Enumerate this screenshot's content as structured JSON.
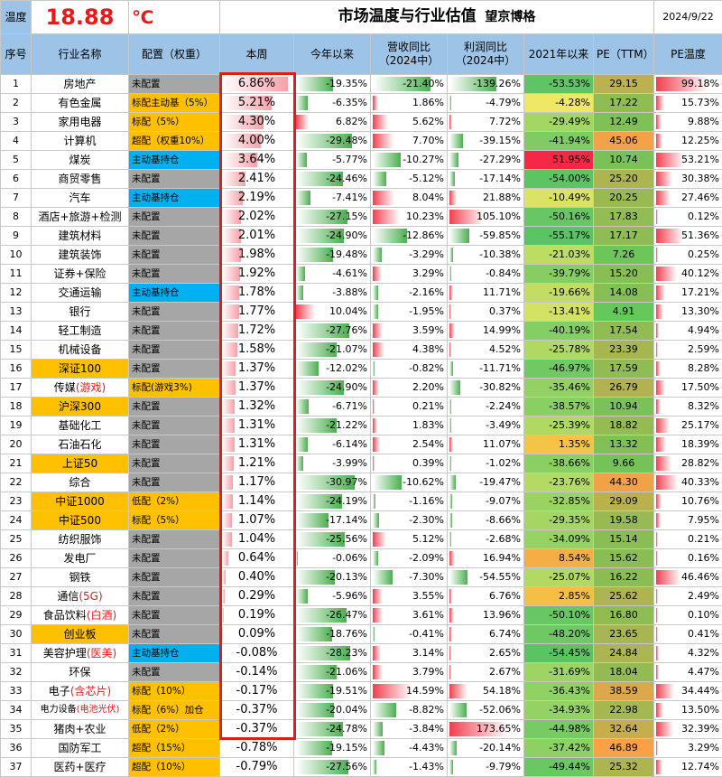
{
  "header": {
    "temp_label": "温度",
    "temp_value": "18.88",
    "temp_unit": "℃",
    "title": "市场温度与行业估值",
    "author": "望京博格",
    "date": "2024/9/22"
  },
  "columns": [
    "序号",
    "行业名称",
    "配置（权重）",
    "本周",
    "今年以来",
    "营收同比（2024中）",
    "利润同比（2024中）",
    "2021年以来",
    "PE（TTM）",
    "PE温度"
  ],
  "colors": {
    "header_bg": "#9dc3e6",
    "cfg_none": "#a6a6a6",
    "cfg_over": "#ffc000",
    "cfg_core": "#00b0f0",
    "name_index": "#ffc000",
    "highlight": "#e31b1b"
  },
  "rows": [
    {
      "no": "1",
      "name": "房地产",
      "cfg": "未配置",
      "ct": "none",
      "wk": "6.86%",
      "ytd": "-19.35%",
      "rev": "-21.40%",
      "prof": "-139.26%",
      "s21": "-53.53%",
      "pe": "29.15",
      "pet": "99.18%"
    },
    {
      "no": "2",
      "name": "有色金属",
      "cfg": "标配主动基（5%）",
      "ct": "over",
      "wk": "5.21%",
      "ytd": "-6.35%",
      "rev": "1.86%",
      "prof": "-4.79%",
      "s21": "-4.28%",
      "pe": "17.22",
      "pet": "15.73%"
    },
    {
      "no": "3",
      "name": "家用电器",
      "cfg": "标配（5%）",
      "ct": "over",
      "wk": "4.30%",
      "ytd": "6.82%",
      "rev": "5.62%",
      "prof": "7.72%",
      "s21": "-29.49%",
      "pe": "12.49",
      "pet": "9.88%"
    },
    {
      "no": "4",
      "name": "计算机",
      "cfg": "超配（权重10%）",
      "ct": "over",
      "wk": "4.00%",
      "ytd": "-29.48%",
      "rev": "7.70%",
      "prof": "-39.15%",
      "s21": "-41.94%",
      "pe": "45.06",
      "pet": "12.25%"
    },
    {
      "no": "5",
      "name": "煤炭",
      "cfg": "主动基持仓",
      "ct": "core",
      "wk": "3.64%",
      "ytd": "-5.77%",
      "rev": "-10.27%",
      "prof": "-27.29%",
      "s21": "51.95%",
      "pe": "10.74",
      "pet": "53.21%"
    },
    {
      "no": "6",
      "name": "商贸零售",
      "cfg": "未配置",
      "ct": "none",
      "wk": "2.41%",
      "ytd": "-24.46%",
      "rev": "-5.12%",
      "prof": "-17.14%",
      "s21": "-54.00%",
      "pe": "25.20",
      "pet": "30.38%"
    },
    {
      "no": "7",
      "name": "汽车",
      "cfg": "主动基持仓",
      "ct": "core",
      "wk": "2.19%",
      "ytd": "-7.41%",
      "rev": "8.04%",
      "prof": "21.88%",
      "s21": "-10.49%",
      "pe": "20.25",
      "pet": "27.46%"
    },
    {
      "no": "8",
      "name": "酒店+旅游+检测",
      "cfg": "未配置",
      "ct": "none",
      "wk": "2.02%",
      "ytd": "-27.15%",
      "rev": "10.23%",
      "prof": "105.10%",
      "s21": "-50.16%",
      "pe": "17.83",
      "pet": "0.12%"
    },
    {
      "no": "9",
      "name": "建筑材料",
      "cfg": "未配置",
      "ct": "none",
      "wk": "2.01%",
      "ytd": "-24.90%",
      "rev": "-12.86%",
      "prof": "-59.85%",
      "s21": "-55.17%",
      "pe": "17.17",
      "pet": "51.36%"
    },
    {
      "no": "10",
      "name": "建筑装饰",
      "cfg": "未配置",
      "ct": "none",
      "wk": "1.98%",
      "ytd": "-19.48%",
      "rev": "-3.29%",
      "prof": "-10.38%",
      "s21": "-21.03%",
      "pe": "7.26",
      "pet": "0.25%"
    },
    {
      "no": "11",
      "name": "证券+保险",
      "cfg": "未配置",
      "ct": "none",
      "wk": "1.92%",
      "ytd": "-4.61%",
      "rev": "3.29%",
      "prof": "-0.84%",
      "s21": "-39.79%",
      "pe": "15.20",
      "pet": "40.12%"
    },
    {
      "no": "12",
      "name": "交通运输",
      "cfg": "主动基持仓",
      "ct": "core",
      "wk": "1.78%",
      "ytd": "-3.88%",
      "rev": "-2.16%",
      "prof": "11.71%",
      "s21": "-19.66%",
      "pe": "14.08",
      "pet": "17.21%"
    },
    {
      "no": "13",
      "name": "银行",
      "cfg": "未配置",
      "ct": "none",
      "wk": "1.77%",
      "ytd": "10.04%",
      "rev": "-1.95%",
      "prof": "0.37%",
      "s21": "-13.41%",
      "pe": "4.91",
      "pet": "13.30%"
    },
    {
      "no": "14",
      "name": "轻工制造",
      "cfg": "未配置",
      "ct": "none",
      "wk": "1.72%",
      "ytd": "-27.76%",
      "rev": "3.59%",
      "prof": "14.99%",
      "s21": "-40.19%",
      "pe": "17.54",
      "pet": "4.94%"
    },
    {
      "no": "15",
      "name": "机械设备",
      "cfg": "未配置",
      "ct": "none",
      "wk": "1.58%",
      "ytd": "-21.07%",
      "rev": "4.38%",
      "prof": "4.52%",
      "s21": "-25.78%",
      "pe": "23.39",
      "pet": "2.59%"
    },
    {
      "no": "16",
      "name": "深证100",
      "cfg": "未配置",
      "ct": "none",
      "idx": true,
      "wk": "1.37%",
      "ytd": "-12.02%",
      "rev": "-0.82%",
      "prof": "-11.71%",
      "s21": "-46.97%",
      "pe": "17.59",
      "pet": "8.28%"
    },
    {
      "no": "17",
      "name": "传媒",
      "name_red": "(游戏)",
      "cfg": "标配(游戏3%)",
      "ct": "over",
      "wk": "1.37%",
      "ytd": "-24.90%",
      "rev": "2.20%",
      "prof": "-30.82%",
      "s21": "-35.46%",
      "pe": "26.79",
      "pet": "17.50%"
    },
    {
      "no": "18",
      "name": "沪深300",
      "cfg": "未配置",
      "ct": "none",
      "idx": true,
      "wk": "1.32%",
      "ytd": "-6.71%",
      "rev": "0.21%",
      "prof": "-2.24%",
      "s21": "-38.57%",
      "pe": "10.94",
      "pet": "8.32%"
    },
    {
      "no": "19",
      "name": "基础化工",
      "cfg": "未配置",
      "ct": "none",
      "wk": "1.31%",
      "ytd": "-21.22%",
      "rev": "1.83%",
      "prof": "-3.49%",
      "s21": "-25.39%",
      "pe": "18.82",
      "pet": "25.17%"
    },
    {
      "no": "20",
      "name": "石油石化",
      "cfg": "未配置",
      "ct": "none",
      "wk": "1.31%",
      "ytd": "-6.14%",
      "rev": "2.54%",
      "prof": "11.07%",
      "s21": "1.35%",
      "pe": "13.32",
      "pet": "18.39%"
    },
    {
      "no": "21",
      "name": "上证50",
      "cfg": "未配置",
      "ct": "none",
      "idx": true,
      "wk": "1.21%",
      "ytd": "-3.99%",
      "rev": "0.39%",
      "prof": "-1.02%",
      "s21": "-38.66%",
      "pe": "9.66",
      "pet": "28.82%"
    },
    {
      "no": "22",
      "name": "综合",
      "cfg": "未配置",
      "ct": "none",
      "wk": "1.17%",
      "ytd": "-30.97%",
      "rev": "-10.62%",
      "prof": "-19.47%",
      "s21": "-23.76%",
      "pe": "44.30",
      "pet": "40.33%"
    },
    {
      "no": "23",
      "name": "中证1000",
      "cfg": "低配（2%）",
      "ct": "over",
      "idx": true,
      "wk": "1.14%",
      "ytd": "-24.19%",
      "rev": "-1.16%",
      "prof": "-9.07%",
      "s21": "-32.85%",
      "pe": "29.09",
      "pet": "10.76%"
    },
    {
      "no": "24",
      "name": "中证500",
      "cfg": "标配（5%）",
      "ct": "over",
      "idx": true,
      "wk": "1.07%",
      "ytd": "-17.14%",
      "rev": "-2.30%",
      "prof": "-8.66%",
      "s21": "-29.35%",
      "pe": "19.58",
      "pet": "7.95%"
    },
    {
      "no": "25",
      "name": "纺织服饰",
      "cfg": "未配置",
      "ct": "none",
      "wk": "1.04%",
      "ytd": "-25.56%",
      "rev": "5.12%",
      "prof": "-2.68%",
      "s21": "-34.09%",
      "pe": "15.14",
      "pet": "0.21%"
    },
    {
      "no": "26",
      "name": "发电厂",
      "cfg": "未配置",
      "ct": "none",
      "wk": "0.64%",
      "ytd": "-0.06%",
      "rev": "-2.09%",
      "prof": "16.94%",
      "s21": "8.54%",
      "pe": "15.62",
      "pet": "0.16%"
    },
    {
      "no": "27",
      "name": "钢铁",
      "cfg": "未配置",
      "ct": "none",
      "wk": "0.40%",
      "ytd": "-20.13%",
      "rev": "-7.30%",
      "prof": "-54.55%",
      "s21": "-25.07%",
      "pe": "16.22",
      "pet": "46.46%"
    },
    {
      "no": "28",
      "name": "通信",
      "name_red": "(5G)",
      "cfg": "未配置",
      "ct": "none",
      "wk": "0.29%",
      "ytd": "-5.96%",
      "rev": "3.55%",
      "prof": "6.76%",
      "s21": "2.85%",
      "pe": "25.62",
      "pet": "2.49%"
    },
    {
      "no": "29",
      "name": "食品饮料",
      "name_red": "(白酒)",
      "cfg": "未配置",
      "ct": "none",
      "wk": "0.19%",
      "ytd": "-26.47%",
      "rev": "3.61%",
      "prof": "13.96%",
      "s21": "-50.10%",
      "pe": "16.80",
      "pet": "0.10%"
    },
    {
      "no": "30",
      "name": "创业板",
      "cfg": "未配置",
      "ct": "none",
      "idx": true,
      "wk": "0.09%",
      "ytd": "-18.76%",
      "rev": "-0.41%",
      "prof": "6.74%",
      "s21": "-48.20%",
      "pe": "23.65",
      "pet": "0.41%"
    },
    {
      "no": "31",
      "name": "美容护理",
      "name_red": "(医美)",
      "cfg": "主动基持仓",
      "ct": "core",
      "wk": "-0.08%",
      "ytd": "-28.23%",
      "rev": "3.14%",
      "prof": "2.65%",
      "s21": "-54.45%",
      "pe": "24.84",
      "pet": "4.32%"
    },
    {
      "no": "32",
      "name": "环保",
      "cfg": "未配置",
      "ct": "none",
      "wk": "-0.14%",
      "ytd": "-21.06%",
      "rev": "3.79%",
      "prof": "2.67%",
      "s21": "-31.69%",
      "pe": "18.04",
      "pet": "4.47%"
    },
    {
      "no": "33",
      "name": "电子",
      "name_red": "(含芯片)",
      "cfg": "标配（10%）",
      "ct": "over",
      "wk": "-0.17%",
      "ytd": "-19.51%",
      "rev": "14.59%",
      "prof": "54.18%",
      "s21": "-36.43%",
      "pe": "38.59",
      "pet": "34.44%"
    },
    {
      "no": "34",
      "name": "电力设备",
      "name_red": "(电池光伏)",
      "cfg": "标配（6%）加仓",
      "ct": "over",
      "small": true,
      "wk": "-0.37%",
      "ytd": "-20.04%",
      "rev": "-8.82%",
      "prof": "-52.06%",
      "s21": "-34.93%",
      "pe": "22.98",
      "pet": "13.50%"
    },
    {
      "no": "35",
      "name": "猪肉+农业",
      "cfg": "低配（2%）",
      "ct": "over",
      "wk": "-0.37%",
      "ytd": "-24.78%",
      "rev": "-3.84%",
      "prof": "173.65%",
      "s21": "-44.98%",
      "pe": "32.64",
      "pet": "32.39%"
    },
    {
      "no": "36",
      "name": "国防军工",
      "cfg": "超配（15%）",
      "ct": "over",
      "wk": "-0.78%",
      "ytd": "-19.15%",
      "rev": "-4.43%",
      "prof": "-20.14%",
      "s21": "-37.42%",
      "pe": "46.89",
      "pet": "3.29%"
    },
    {
      "no": "37",
      "name": "医药+医疗",
      "cfg": "超配（10%）",
      "ct": "over",
      "wk": "-0.79%",
      "ytd": "-27.56%",
      "rev": "-1.43%",
      "prof": "-9.79%",
      "s21": "-49.44%",
      "pe": "25.32",
      "pet": "12.74%"
    }
  ]
}
